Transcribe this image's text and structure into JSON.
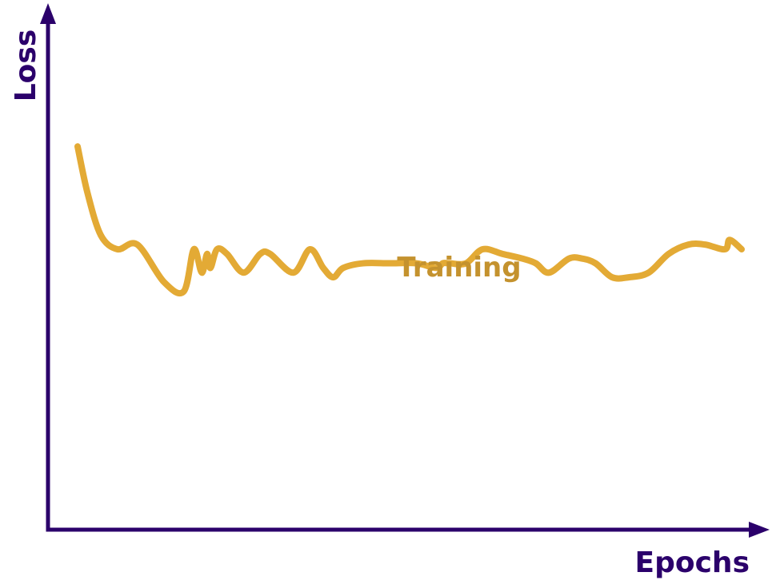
{
  "chart_data": {
    "type": "line",
    "title": "",
    "xlabel": "Epochs",
    "ylabel": "Loss",
    "grid": false,
    "axis_ticks": false,
    "xlim": [
      0,
      100
    ],
    "ylim": [
      0,
      100
    ],
    "series": [
      {
        "name": "Training",
        "color": "#e3aa35",
        "label_color": "#c4922e",
        "x": [
          0,
          1.5,
          3.5,
          6,
          9,
          13,
          16,
          17.5,
          18.7,
          19.5,
          20,
          21,
          22.5,
          25,
          27.5,
          29,
          32.5,
          35,
          37,
          38.5,
          40,
          43,
          47,
          51,
          54,
          55,
          56,
          58.5,
          61,
          64,
          67,
          69,
          71,
          74,
          76,
          78,
          80.5,
          83,
          86,
          89,
          92,
          94.5,
          97.5,
          98.2,
          100
        ],
        "y": [
          82,
          72,
          63,
          60,
          61,
          53,
          51,
          60,
          55,
          59,
          56,
          60,
          59,
          55,
          59,
          59,
          55,
          60,
          56,
          54,
          56,
          57,
          57,
          57,
          56,
          57,
          57,
          57,
          60,
          59,
          58,
          57,
          55,
          58,
          58,
          57,
          54,
          54,
          55,
          59,
          61,
          61,
          60,
          62,
          60
        ]
      }
    ],
    "colors": {
      "axis": "#2b006b",
      "series": "#e3aa35",
      "series_label": "#c4922e"
    }
  }
}
